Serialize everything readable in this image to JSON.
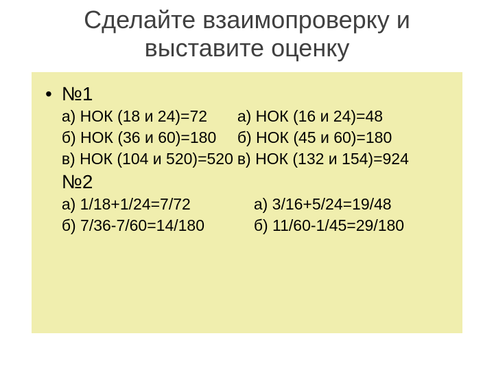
{
  "title_line1": "Сделайте взаимопроверку и",
  "title_line2": "выставите оценку",
  "heading1": "№1",
  "heading2": "№2",
  "block1": {
    "r1": {
      "left": "а) НОК (18 и 24)=72",
      "right": "а) НОК (16 и 24)=48"
    },
    "r2": {
      "left": "б) НОК (36 и 60)=180",
      "right": "б) НОК (45 и 60)=180"
    },
    "r3": {
      "left": "в) НОК (104 и 520)=520",
      "right": "в) НОК (132 и 154)=924"
    }
  },
  "block2": {
    "r1": {
      "left": "а) 1/18+1/24=7/72",
      "right": "а) 3/16+5/24=19/48"
    },
    "r2": {
      "left": "б) 7/36-7/60=14/180",
      "right": "б) 11/60-1/45=29/180"
    }
  },
  "colors": {
    "background": "#ffffff",
    "box_background": "#f0eeae",
    "title_color": "#404040",
    "text_color": "#000000"
  },
  "fonts": {
    "title_size_pt": 36,
    "heading_size_pt": 28,
    "body_size_pt": 23
  }
}
